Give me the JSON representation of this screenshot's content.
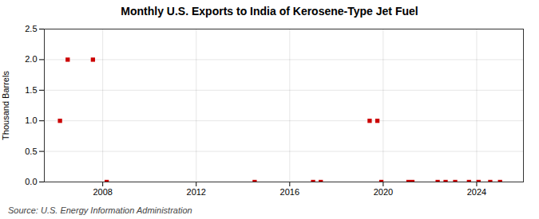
{
  "chart_data": {
    "type": "scatter",
    "title": "Monthly U.S. Exports to India of Kerosene-Type Jet Fuel",
    "ylabel": "Thousand Barrels",
    "annotations": [
      "Source: U.S. Energy Information Administration"
    ],
    "x": [
      2006.17,
      2006.5,
      2007.58,
      2008.17,
      2014.5,
      2017.0,
      2017.33,
      2019.42,
      2019.75,
      2019.92,
      2021.08,
      2021.25,
      2022.33,
      2022.67,
      2023.08,
      2023.67,
      2024.08,
      2024.58,
      2025.0
    ],
    "values": [
      1.0,
      2.0,
      2.0,
      0.0,
      0.0,
      0.0,
      0.0,
      1.0,
      1.0,
      0.0,
      0.0,
      0.0,
      0.0,
      0.0,
      0.0,
      0.0,
      0.0,
      0.0,
      0.0
    ],
    "color": "#cc0000",
    "marker": "square",
    "grid": true,
    "xlim": [
      2005.5,
      2026.0
    ],
    "xticks": [
      2008,
      2012,
      2016,
      2020,
      2024
    ],
    "ylim": [
      0,
      2.5
    ],
    "yticks": [
      {
        "value": 0.0,
        "label": "0.0"
      },
      0.5,
      {
        "value": 1.0,
        "label": "1.0"
      },
      1.5,
      {
        "value": 2.0,
        "label": "2.0"
      },
      2.5
    ]
  }
}
